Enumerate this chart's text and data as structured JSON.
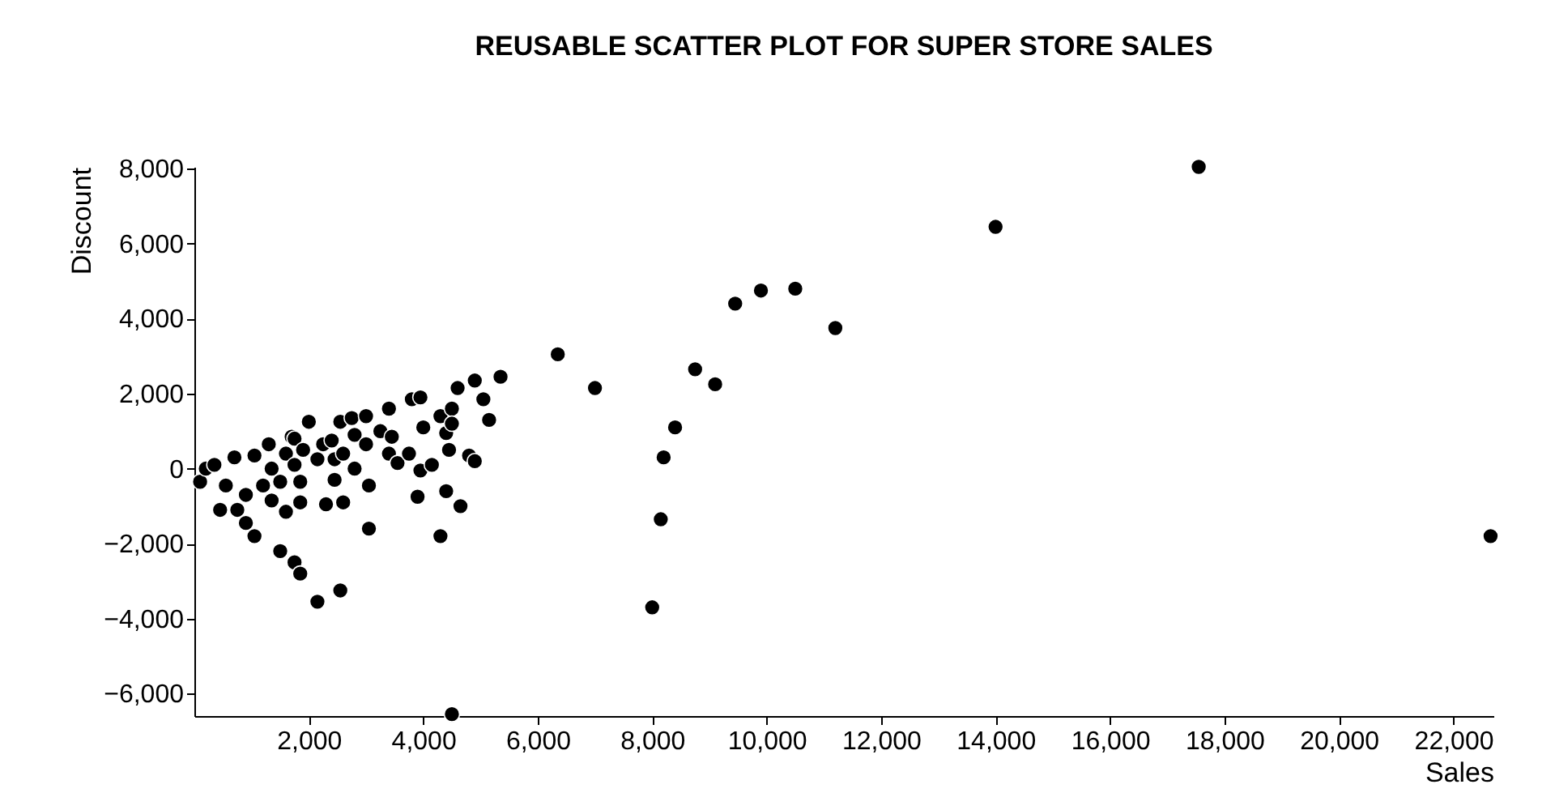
{
  "chart_data": {
    "type": "scatter",
    "title": "REUSABLE SCATTER PLOT FOR SUPER STORE SALES",
    "xlabel": "Sales",
    "ylabel": "Discount",
    "x": [
      100,
      200,
      350,
      450,
      550,
      700,
      750,
      900,
      900,
      1050,
      1050,
      1200,
      1300,
      1350,
      1350,
      1500,
      1500,
      1600,
      1600,
      1700,
      1750,
      1750,
      1750,
      1850,
      1850,
      1850,
      1900,
      2000,
      2150,
      2150,
      2250,
      2300,
      2400,
      2450,
      2450,
      2550,
      2550,
      2600,
      2600,
      2750,
      2800,
      2800,
      3000,
      3000,
      3050,
      3050,
      3250,
      3400,
      3400,
      3450,
      3550,
      3750,
      3800,
      3900,
      3950,
      3950,
      4000,
      4150,
      4300,
      4300,
      4400,
      4400,
      4450,
      4500,
      4500,
      4500,
      4600,
      4650,
      4800,
      4900,
      4900,
      5050,
      5150,
      5350,
      6350,
      7000,
      8000,
      8150,
      8200,
      8400,
      8750,
      9100,
      9450,
      9900,
      10500,
      11200,
      14000,
      17550,
      22650
    ],
    "series": [
      {
        "color": "#000000",
        "values": [
          -350,
          0,
          100,
          -1100,
          -450,
          300,
          -1100,
          -1450,
          -700,
          350,
          -1800,
          -450,
          650,
          0,
          -850,
          -350,
          -2200,
          400,
          -1150,
          850,
          100,
          800,
          -2500,
          -900,
          -350,
          -2800,
          500,
          1250,
          250,
          -3550,
          650,
          -950,
          750,
          -300,
          250,
          1250,
          -3250,
          -900,
          400,
          1350,
          900,
          0,
          1400,
          650,
          -450,
          -1600,
          1000,
          1600,
          400,
          850,
          150,
          400,
          1850,
          -750,
          -50,
          1900,
          1100,
          100,
          -1800,
          1400,
          950,
          -600,
          500,
          -6550,
          1600,
          1200,
          2150,
          -1000,
          350,
          2350,
          200,
          1850,
          1300,
          2450,
          3050,
          2150,
          -3700,
          -1350,
          300,
          1100,
          2650,
          2250,
          4400,
          4750,
          4800,
          3750,
          6450,
          8050,
          -1800
        ]
      }
    ],
    "xlim": [
      0,
      22700
    ],
    "ylim": [
      -6600,
      8050
    ],
    "xticks": [
      {
        "value": 2000,
        "label": "2,000"
      },
      {
        "value": 4000,
        "label": "4,000"
      },
      {
        "value": 6000,
        "label": "6,000"
      },
      {
        "value": 8000,
        "label": "8,000"
      },
      {
        "value": 10000,
        "label": "10,000"
      },
      {
        "value": 12000,
        "label": "12,000"
      },
      {
        "value": 14000,
        "label": "14,000"
      },
      {
        "value": 16000,
        "label": "16,000"
      },
      {
        "value": 18000,
        "label": "18,000"
      },
      {
        "value": 20000,
        "label": "20,000"
      },
      {
        "value": 22000,
        "label": "22,000"
      }
    ],
    "yticks": [
      {
        "value": -6000,
        "label": "−6,000"
      },
      {
        "value": -4000,
        "label": "−4,000"
      },
      {
        "value": -2000,
        "label": "−2,000"
      },
      0,
      {
        "value": 2000,
        "label": "2,000"
      },
      {
        "value": 4000,
        "label": "4,000"
      },
      {
        "value": 6000,
        "label": "6,000"
      },
      {
        "value": 8000,
        "label": "8,000"
      }
    ],
    "grid": false,
    "marker": "circle"
  }
}
